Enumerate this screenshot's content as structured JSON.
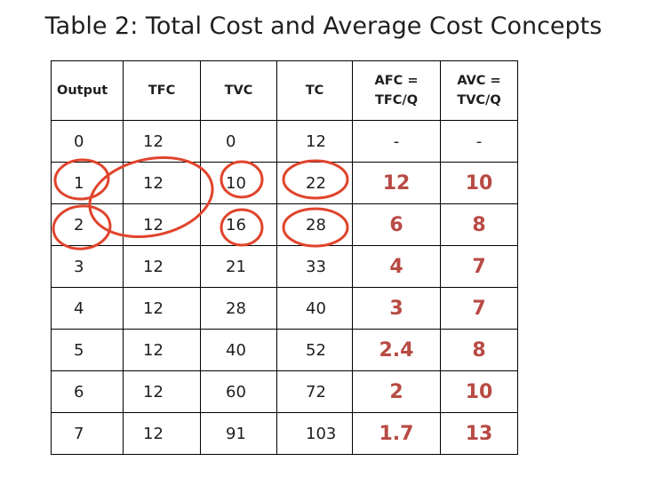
{
  "title": "Table 2: Total Cost and Average Cost Concepts",
  "table": {
    "headers": [
      {
        "line1": "Output",
        "line2": ""
      },
      {
        "line1": "TFC",
        "line2": ""
      },
      {
        "line1": "TVC",
        "line2": ""
      },
      {
        "line1": "TC",
        "line2": ""
      },
      {
        "line1": "AFC =",
        "line2": "TFC/Q"
      },
      {
        "line1": "AVC =",
        "line2": "TVC/Q"
      }
    ],
    "rows": [
      [
        "0",
        "12",
        "0",
        "12",
        "-",
        "-"
      ],
      [
        "1",
        "12",
        "10",
        "22",
        "12",
        "10"
      ],
      [
        "2",
        "12",
        "16",
        "28",
        "6",
        "8"
      ],
      [
        "3",
        "12",
        "21",
        "33",
        "4",
        "7"
      ],
      [
        "4",
        "12",
        "28",
        "40",
        "3",
        "7"
      ],
      [
        "5",
        "12",
        "40",
        "52",
        "2.4",
        "8"
      ],
      [
        "6",
        "12",
        "60",
        "72",
        "2",
        "10"
      ],
      [
        "7",
        "12",
        "91",
        "103",
        "1.7",
        "13"
      ]
    ]
  },
  "annotations": {
    "circle_color": "#e0442c",
    "handwritten_color": "#b84a44"
  }
}
